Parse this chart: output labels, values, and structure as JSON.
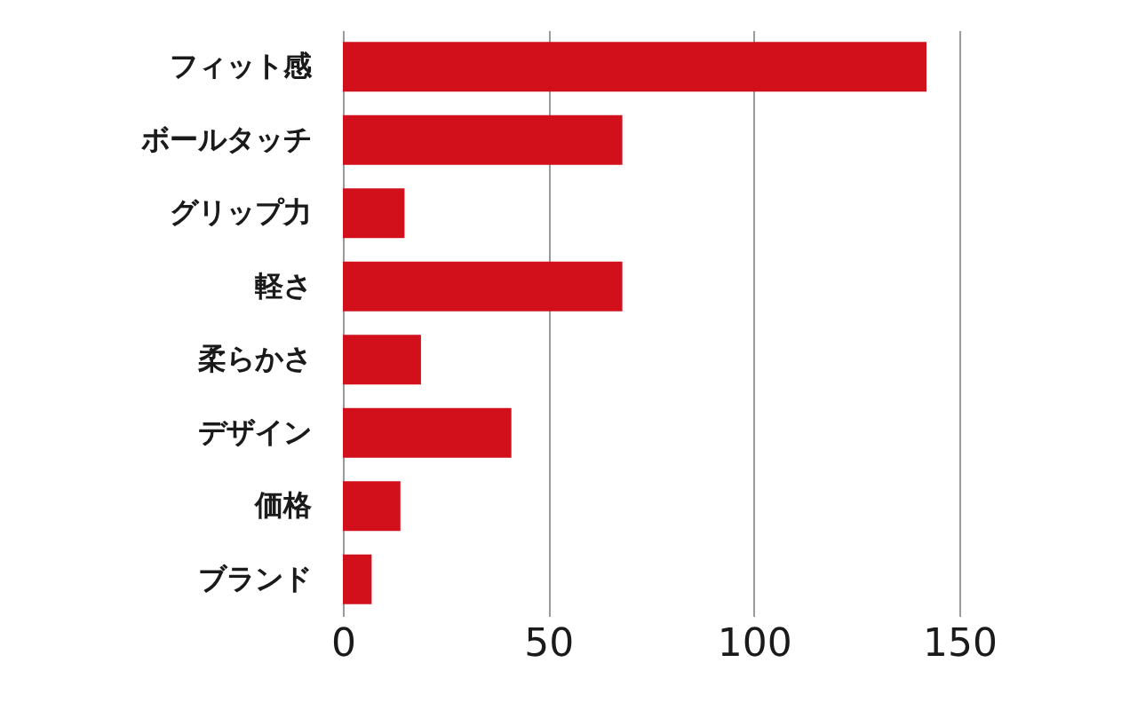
{
  "chart_data": {
    "type": "bar",
    "orientation": "horizontal",
    "categories": [
      "フィット感",
      "ボールタッチ",
      "グリップ力",
      "軽さ",
      "柔らかさ",
      "デザイン",
      "価格",
      "ブランド"
    ],
    "values": [
      142,
      68,
      15,
      68,
      19,
      41,
      14,
      7
    ],
    "color": "#d1101c",
    "xlim": [
      0,
      150
    ],
    "xticks": [
      0,
      50,
      100,
      150
    ],
    "grid": "x"
  }
}
